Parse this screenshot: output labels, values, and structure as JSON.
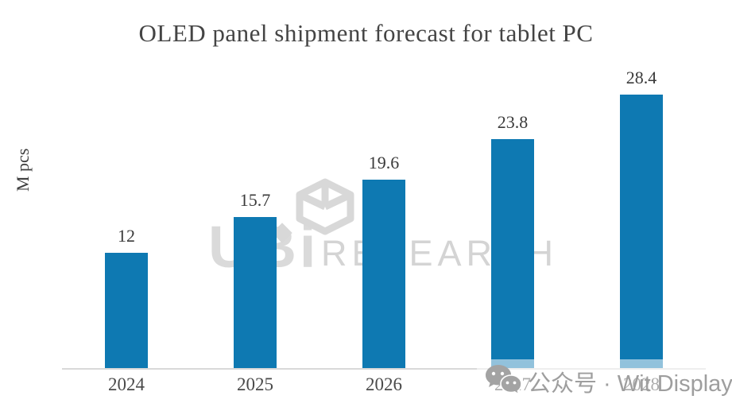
{
  "title": "OLED panel shipment forecast for tablet PC",
  "chart_data": {
    "type": "bar",
    "title": "OLED panel shipment forecast for tablet PC",
    "categories": [
      "2024",
      "2025",
      "2026",
      "2027",
      "2028"
    ],
    "values": [
      12,
      15.7,
      19.6,
      23.8,
      28.4
    ],
    "value_labels": [
      "12",
      "15.7",
      "19.6",
      "23.8",
      "28.4"
    ],
    "xlabel": "",
    "ylabel": "M pcs",
    "ylim": [
      0,
      30
    ],
    "grid": false,
    "legend": "none",
    "bar_color": "#0e79b2",
    "value_label_color": "#3a3a3a",
    "tick_label_color": "#4a4a4a",
    "axis_line_color": "#d9d9d9"
  },
  "watermarks": {
    "ubi": {
      "logo_text": "UBi",
      "research_text": "RESEARCH",
      "cube_icon": "cube-logo-icon",
      "color": "#d8d8d8"
    },
    "wechat": {
      "icon": "wechat-icon",
      "text": "公众号 · Wit Display",
      "color": "#9e9e9e"
    }
  }
}
